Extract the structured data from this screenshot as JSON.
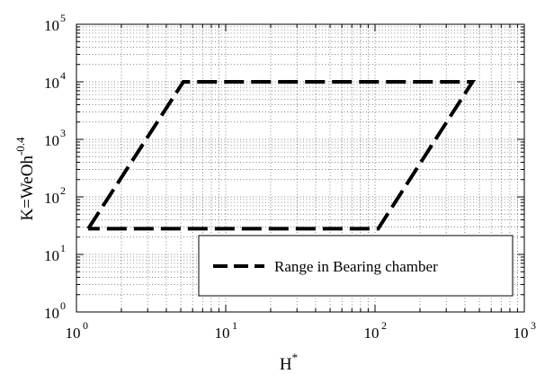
{
  "chart_data": {
    "type": "line",
    "xscale": "log",
    "yscale": "log",
    "xlim": [
      1,
      1000
    ],
    "ylim": [
      1,
      100000
    ],
    "x_ticks": [
      {
        "base": "10",
        "exp": "0",
        "value": 1
      },
      {
        "base": "10",
        "exp": "1",
        "value": 10
      },
      {
        "base": "10",
        "exp": "2",
        "value": 100
      },
      {
        "base": "10",
        "exp": "3",
        "value": 1000
      }
    ],
    "y_ticks": [
      {
        "base": "10",
        "exp": "0",
        "value": 1
      },
      {
        "base": "10",
        "exp": "1",
        "value": 10
      },
      {
        "base": "10",
        "exp": "2",
        "value": 100
      },
      {
        "base": "10",
        "exp": "3",
        "value": 1000
      },
      {
        "base": "10",
        "exp": "4",
        "value": 10000
      },
      {
        "base": "10",
        "exp": "5",
        "value": 100000
      }
    ],
    "xlabel": {
      "text": "H",
      "sup": "*"
    },
    "ylabel": {
      "text": "K=WeOh",
      "sup": "-0.4"
    },
    "grid": "dotted, major and minor",
    "legend_position": "lower-right",
    "series": [
      {
        "name": "Range in Bearing chamber",
        "style": "dashed",
        "color": "#000000",
        "x": [
          1.2,
          5.2,
          450,
          105,
          1.2
        ],
        "y": [
          28,
          10000,
          10000,
          28,
          28
        ]
      }
    ]
  }
}
